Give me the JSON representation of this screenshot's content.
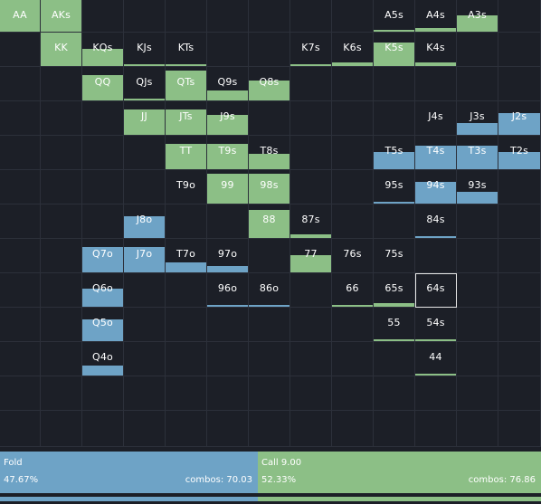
{
  "colors": {
    "fold": "#6ea3c6",
    "call": "#8cbf86",
    "background": "#1c1f27"
  },
  "grid": {
    "cells": [
      {
        "label": "AA",
        "r": 0,
        "c": 0,
        "fold": 0,
        "call": 1
      },
      {
        "label": "AKs",
        "r": 0,
        "c": 1,
        "fold": 0,
        "call": 1
      },
      {
        "label": "A5s",
        "r": 0,
        "c": 9,
        "fold": 0,
        "call": 0.05
      },
      {
        "label": "A4s",
        "r": 0,
        "c": 10,
        "fold": 0,
        "call": 0.1
      },
      {
        "label": "A3s",
        "r": 0,
        "c": 11,
        "fold": 0,
        "call": 0.5
      },
      {
        "label": "KK",
        "r": 1,
        "c": 1,
        "fold": 0,
        "call": 1
      },
      {
        "label": "KQs",
        "r": 1,
        "c": 2,
        "fold": 0,
        "call": 0.5
      },
      {
        "label": "KJs",
        "r": 1,
        "c": 3,
        "fold": 0,
        "call": 0.05
      },
      {
        "label": "KTs",
        "r": 1,
        "c": 4,
        "fold": 0,
        "call": 0.05
      },
      {
        "label": "K7s",
        "r": 1,
        "c": 7,
        "fold": 0,
        "call": 0.05
      },
      {
        "label": "K6s",
        "r": 1,
        "c": 8,
        "fold": 0,
        "call": 0.1
      },
      {
        "label": "K5s",
        "r": 1,
        "c": 9,
        "fold": 0,
        "call": 0.7
      },
      {
        "label": "K4s",
        "r": 1,
        "c": 10,
        "fold": 0,
        "call": 0.1
      },
      {
        "label": "QQ",
        "r": 2,
        "c": 2,
        "fold": 0,
        "call": 0.75
      },
      {
        "label": "QJs",
        "r": 2,
        "c": 3,
        "fold": 0,
        "call": 0.05
      },
      {
        "label": "QTs",
        "r": 2,
        "c": 4,
        "fold": 0,
        "call": 0.9
      },
      {
        "label": "Q9s",
        "r": 2,
        "c": 5,
        "fold": 0,
        "call": 0.3
      },
      {
        "label": "Q8s",
        "r": 2,
        "c": 6,
        "fold": 0,
        "call": 0.6
      },
      {
        "label": "JJ",
        "r": 3,
        "c": 3,
        "fold": 0,
        "call": 0.75
      },
      {
        "label": "JTs",
        "r": 3,
        "c": 4,
        "fold": 0,
        "call": 0.75
      },
      {
        "label": "J9s",
        "r": 3,
        "c": 5,
        "fold": 0,
        "call": 0.6
      },
      {
        "label": "J4s",
        "r": 3,
        "c": 10,
        "fold": 0,
        "call": 0
      },
      {
        "label": "J3s",
        "r": 3,
        "c": 11,
        "fold": 0.35,
        "call": 0
      },
      {
        "label": "J2s",
        "r": 3,
        "c": 12,
        "fold": 0.65,
        "call": 0
      },
      {
        "label": "TT",
        "r": 4,
        "c": 4,
        "fold": 0,
        "call": 0.75
      },
      {
        "label": "T9s",
        "r": 4,
        "c": 5,
        "fold": 0,
        "call": 0.75
      },
      {
        "label": "T8s",
        "r": 4,
        "c": 6,
        "fold": 0,
        "call": 0.45
      },
      {
        "label": "T5s",
        "r": 4,
        "c": 9,
        "fold": 0.5,
        "call": 0
      },
      {
        "label": "T4s",
        "r": 4,
        "c": 10,
        "fold": 0.7,
        "call": 0
      },
      {
        "label": "T3s",
        "r": 4,
        "c": 11,
        "fold": 0.7,
        "call": 0
      },
      {
        "label": "T2s",
        "r": 4,
        "c": 12,
        "fold": 0.5,
        "call": 0
      },
      {
        "label": "T9o",
        "r": 5,
        "c": 4,
        "fold": 0,
        "call": 0
      },
      {
        "label": "99",
        "r": 5,
        "c": 5,
        "fold": 0,
        "call": 0.9
      },
      {
        "label": "98s",
        "r": 5,
        "c": 6,
        "fold": 0,
        "call": 0.9
      },
      {
        "label": "95s",
        "r": 5,
        "c": 9,
        "fold": 0.05,
        "call": 0
      },
      {
        "label": "94s",
        "r": 5,
        "c": 10,
        "fold": 0.65,
        "call": 0
      },
      {
        "label": "93s",
        "r": 5,
        "c": 11,
        "fold": 0.35,
        "call": 0
      },
      {
        "label": "J8o",
        "r": 6,
        "c": 3,
        "fold": 0.65,
        "call": 0
      },
      {
        "label": "88",
        "r": 6,
        "c": 6,
        "fold": 0,
        "call": 0.85
      },
      {
        "label": "87s",
        "r": 6,
        "c": 7,
        "fold": 0,
        "call": 0.1
      },
      {
        "label": "84s",
        "r": 6,
        "c": 10,
        "fold": 0.05,
        "call": 0
      },
      {
        "label": "Q7o",
        "r": 7,
        "c": 2,
        "fold": 0.75,
        "call": 0
      },
      {
        "label": "J7o",
        "r": 7,
        "c": 3,
        "fold": 0.75,
        "call": 0
      },
      {
        "label": "T7o",
        "r": 7,
        "c": 4,
        "fold": 0.3,
        "call": 0
      },
      {
        "label": "97o",
        "r": 7,
        "c": 5,
        "fold": 0.2,
        "call": 0
      },
      {
        "label": "77",
        "r": 7,
        "c": 7,
        "fold": 0,
        "call": 0.5
      },
      {
        "label": "76s",
        "r": 7,
        "c": 8,
        "fold": 0,
        "call": 0
      },
      {
        "label": "75s",
        "r": 7,
        "c": 9,
        "fold": 0,
        "call": 0
      },
      {
        "label": "Q6o",
        "r": 8,
        "c": 2,
        "fold": 0.55,
        "call": 0
      },
      {
        "label": "96o",
        "r": 8,
        "c": 5,
        "fold": 0.05,
        "call": 0
      },
      {
        "label": "86o",
        "r": 8,
        "c": 6,
        "fold": 0.05,
        "call": 0
      },
      {
        "label": "66",
        "r": 8,
        "c": 8,
        "fold": 0,
        "call": 0.05
      },
      {
        "label": "65s",
        "r": 8,
        "c": 9,
        "fold": 0,
        "call": 0.1
      },
      {
        "label": "64s",
        "r": 8,
        "c": 10,
        "fold": 0,
        "call": 0,
        "selected": true
      },
      {
        "label": "Q5o",
        "r": 9,
        "c": 2,
        "fold": 0.65,
        "call": 0
      },
      {
        "label": "55",
        "r": 9,
        "c": 9,
        "fold": 0,
        "call": 0.03
      },
      {
        "label": "54s",
        "r": 9,
        "c": 10,
        "fold": 0,
        "call": 0.05
      },
      {
        "label": "Q4o",
        "r": 10,
        "c": 2,
        "fold": 0.3,
        "call": 0
      },
      {
        "label": "44",
        "r": 10,
        "c": 10,
        "fold": 0,
        "call": 0.03
      }
    ]
  },
  "summary": {
    "fold": {
      "name": "Fold",
      "pct": "47.67%",
      "combos": "combos: 70.03",
      "share": 0.4767
    },
    "call": {
      "name": "Call 9.00",
      "pct": "52.33%",
      "combos": "combos: 76.86",
      "share": 0.5233
    }
  }
}
